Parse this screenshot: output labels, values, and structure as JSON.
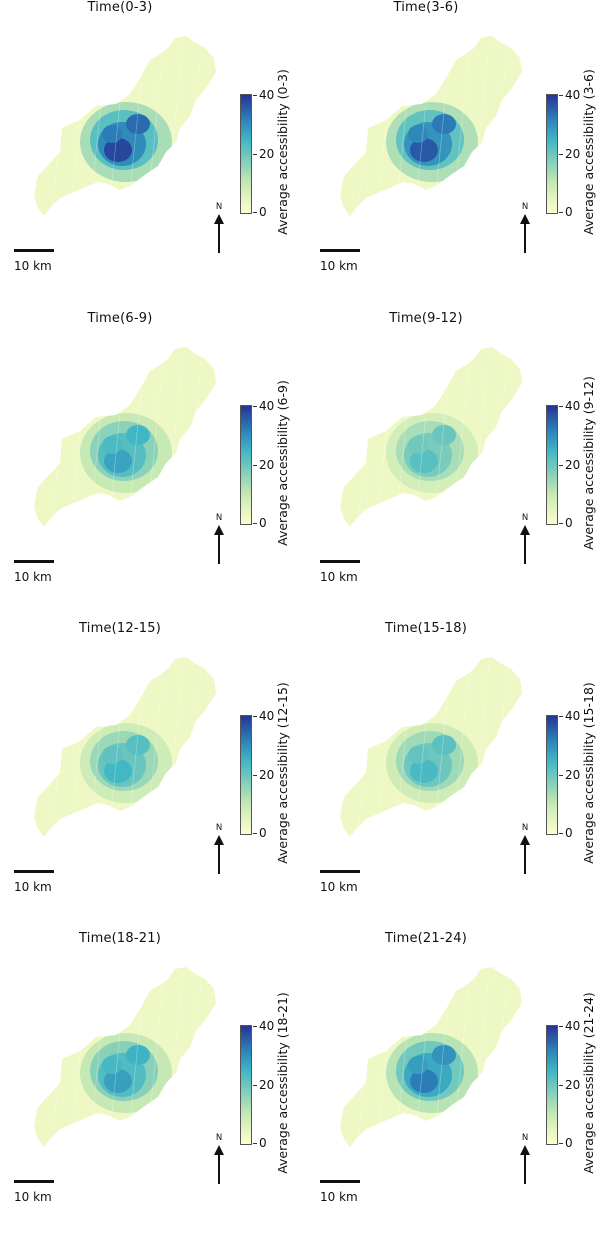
{
  "panels": [
    {
      "title": "Time(0-3)",
      "legend_title": "Average accessibility (0-3)",
      "intensity": 1.0
    },
    {
      "title": "Time(3-6)",
      "legend_title": "Average accessibility (3-6)",
      "intensity": 0.95
    },
    {
      "title": "Time(6-9)",
      "legend_title": "Average accessibility (6-9)",
      "intensity": 0.7
    },
    {
      "title": "Time(9-12)",
      "legend_title": "Average accessibility (9-12)",
      "intensity": 0.55
    },
    {
      "title": "Time(12-15)",
      "legend_title": "Average accessibility (12-15)",
      "intensity": 0.62
    },
    {
      "title": "Time(15-18)",
      "legend_title": "Average accessibility (15-18)",
      "intensity": 0.6
    },
    {
      "title": "Time(18-21)",
      "legend_title": "Average accessibility (18-21)",
      "intensity": 0.72
    },
    {
      "title": "Time(21-24)",
      "legend_title": "Average accessibility (21-24)",
      "intensity": 0.85
    }
  ],
  "colorbar": {
    "ticks": [
      "40",
      "20",
      "0"
    ],
    "colors": [
      "#ffffcc",
      "#c7e9b4",
      "#7fcdbb",
      "#41b6c4",
      "#2c7fb8",
      "#253494"
    ]
  },
  "north_label": "N",
  "scale_label": "10 km"
}
